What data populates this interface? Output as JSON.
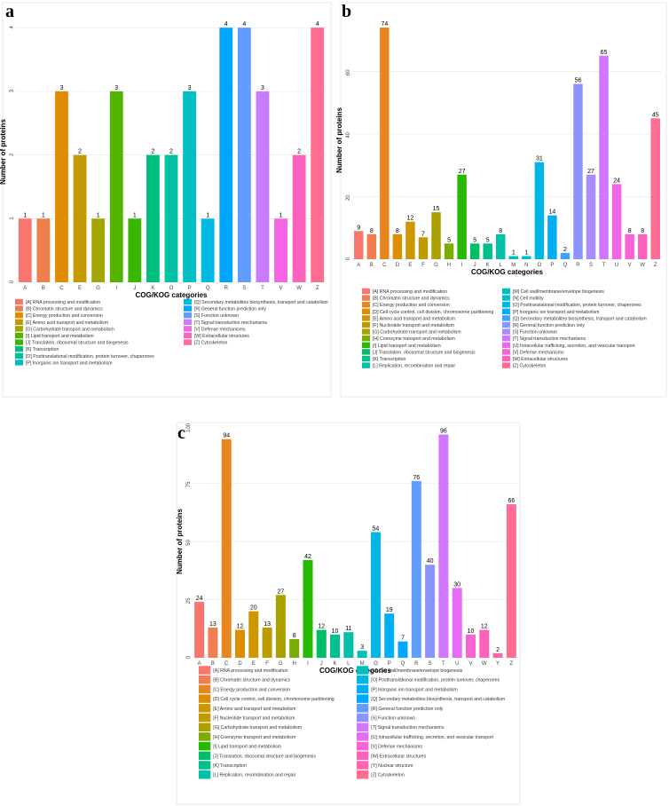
{
  "panels": [
    "a",
    "b",
    "c"
  ],
  "chart_data": [
    {
      "type": "bar",
      "panel": "a",
      "xlabel": "COG/KOG categories",
      "ylabel": "Number of proteins",
      "ylim": [
        0,
        4.1
      ],
      "yticks": [
        0,
        1,
        2,
        3,
        4
      ],
      "categories": [
        "A",
        "B",
        "C",
        "E",
        "G",
        "I",
        "J",
        "K",
        "O",
        "P",
        "Q",
        "R",
        "S",
        "T",
        "V",
        "W",
        "Z"
      ],
      "values": [
        1,
        1,
        3,
        2,
        1,
        3,
        1,
        2,
        2,
        3,
        1,
        4,
        4,
        3,
        1,
        2,
        4
      ],
      "colors": [
        "#F8766D",
        "#F07F4E",
        "#E08B00",
        "#C49A00",
        "#A3A500",
        "#53B400",
        "#39B600",
        "#00BF7D",
        "#00C1A3",
        "#00BFC4",
        "#00B9E3",
        "#00A5FF",
        "#619CFF",
        "#C77CFF",
        "#F564E3",
        "#FF62BC",
        "#FF6C91"
      ],
      "legend": [
        "[A] RNA processing and modification",
        "[B] Chromatin structure and dynamics",
        "[C] Energy production and conversion",
        "[E] Amino acid transport and metabolism",
        "[G] Carbohydrate transport and metabolism",
        "[I] Lipid transport and metabolism",
        "[J] Translation, ribosomal structure and biogenesis",
        "[K] Transcription",
        "[O] Posttranslational modification, protein turnover, chaperones",
        "[P] Inorganic ion transport and metabolism",
        "[Q] Secondary metabolites biosynthesis, transport and catabolism",
        "[R] General function prediction only",
        "[S] Function unknown",
        "[T] Signal transduction mechanisms",
        "[V] Defense mechanisms",
        "[W] Extracellular structures",
        "[Z] Cytoskeleton"
      ]
    },
    {
      "type": "bar",
      "panel": "b",
      "xlabel": "COG/KOG categories",
      "ylabel": "Number of proteins",
      "ylim": [
        0,
        76
      ],
      "yticks": [
        0,
        20,
        40,
        60
      ],
      "categories": [
        "A",
        "B",
        "C",
        "D",
        "E",
        "F",
        "G",
        "H",
        "I",
        "J",
        "K",
        "L",
        "M",
        "N",
        "O",
        "P",
        "Q",
        "R",
        "S",
        "T",
        "U",
        "V",
        "W",
        "Z"
      ],
      "values": [
        9,
        8,
        74,
        8,
        12,
        7,
        15,
        5,
        27,
        5,
        5,
        8,
        1,
        1,
        31,
        14,
        2,
        56,
        27,
        65,
        24,
        8,
        8,
        45
      ],
      "colors": [
        "#F8766D",
        "#F17D51",
        "#E7851E",
        "#DD8D00",
        "#CE9600",
        "#BE9C00",
        "#AC9F00",
        "#7AAD00",
        "#26B900",
        "#00BE67",
        "#00C08B",
        "#00C1A7",
        "#00C0BB",
        "#00BDD0",
        "#00B7E4",
        "#00AEF5",
        "#3DA1FF",
        "#8B93FF",
        "#A88BFF",
        "#D376FF",
        "#F066EA",
        "#FA62D5",
        "#FF62BC",
        "#FF6C91"
      ],
      "legend": [
        "[A] RNA processing and modification",
        "[B] Chromatin structure and dynamics",
        "[C] Energy production and conversion",
        "[D] Cell cycle control, cell division, chromosome partitioning",
        "[E] Amino acid transport and metabolism",
        "[F] Nucleotide transport and metabolism",
        "[G] Carbohydrate transport and metabolism",
        "[H] Coenzyme transport and metabolism",
        "[I] Lipid transport and metabolism",
        "[J] Translation, ribosomal structure and biogenesis",
        "[K] Transcription",
        "[L] Replication, recombination and repair",
        "[M] Cell wall/membrane/envelope biogenesis",
        "[N] Cell motility",
        "[O] Posttranslational modification, protein turnover, chaperones",
        "[P] Inorganic ion transport and metabolism",
        "[Q] Secondary metabolites biosynthesis, transport and catabolism",
        "[R] General function prediction only",
        "[S] Function unknown",
        "[T] Signal transduction mechanisms",
        "[U] Intracellular trafficking, secretion, and vesicular transport",
        "[V] Defense mechanisms",
        "[W] Extracellular structures",
        "[Z] Cytoskeleton"
      ]
    },
    {
      "type": "bar",
      "panel": "c",
      "xlabel": "COG/KOG categories",
      "ylabel": "Number of proteins",
      "ylim": [
        0,
        100
      ],
      "yticks": [
        0,
        25,
        50,
        75,
        100
      ],
      "categories": [
        "A",
        "B",
        "C",
        "D",
        "E",
        "F",
        "G",
        "H",
        "I",
        "J",
        "K",
        "L",
        "M",
        "O",
        "P",
        "Q",
        "R",
        "S",
        "T",
        "U",
        "V",
        "W",
        "Y",
        "Z"
      ],
      "values": [
        24,
        13,
        94,
        12,
        20,
        13,
        27,
        8,
        42,
        12,
        10,
        11,
        3,
        54,
        19,
        7,
        76,
        40,
        96,
        30,
        10,
        12,
        2,
        66
      ],
      "colors": [
        "#F8766D",
        "#F17D51",
        "#E7851E",
        "#DD8D00",
        "#CE9600",
        "#BE9C00",
        "#AC9F00",
        "#7AAD00",
        "#26B900",
        "#00BE67",
        "#00C08B",
        "#00C1A7",
        "#00C0BB",
        "#00B7E4",
        "#00AEF5",
        "#00A6FF",
        "#619CFF",
        "#8B93FF",
        "#D376FF",
        "#E76BF3",
        "#FA62D5",
        "#FF62BC",
        "#FF65AC",
        "#FF6C91"
      ],
      "legend": [
        "[A] RNA processing and modification",
        "[B] Chromatin structure and dynamics",
        "[C] Energy production and conversion",
        "[D] Cell cycle control, cell division, chromosome partitioning",
        "[E] Amino acid transport and metabolism",
        "[F] Nucleotide transport and metabolism",
        "[G] Carbohydrate transport and metabolism",
        "[H] Coenzyme transport and metabolism",
        "[I] Lipid transport and metabolism",
        "[J] Translation, ribosomal structure and biogenesis",
        "[K] Transcription",
        "[L] Replication, recombination and repair",
        "[M] Cell wall/membrane/envelope biogenesis",
        "[O] Posttranslational modification, protein turnover, chaperones",
        "[P] Inorganic ion transport and metabolism",
        "[Q] Secondary metabolites biosynthesis, transport and catabolism",
        "[R] General function prediction only",
        "[S] Function unknown",
        "[T] Signal transduction mechanisms",
        "[U] Intracellular trafficking, secretion, and vesicular transport",
        "[V] Defense mechanisms",
        "[W] Extracellular structures",
        "[Y] Nuclear structure",
        "[Z] Cytoskeleton"
      ]
    }
  ]
}
